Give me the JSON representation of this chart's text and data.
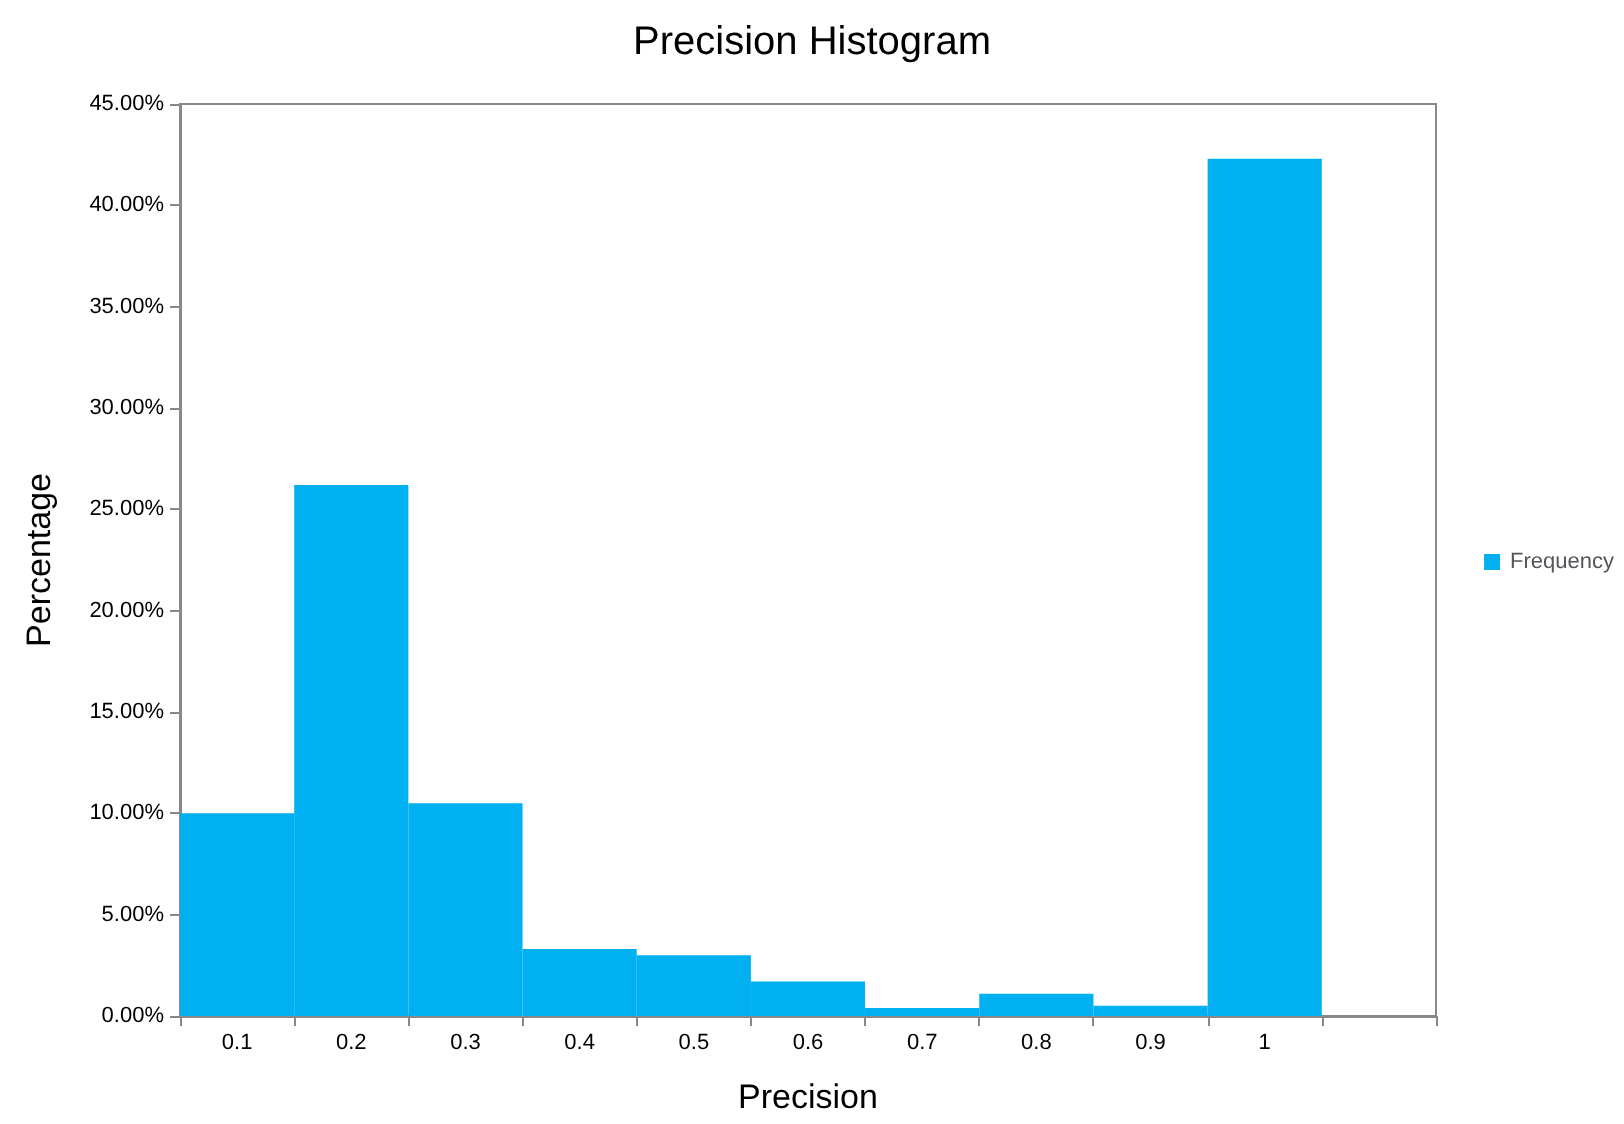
{
  "chart_data": {
    "type": "bar",
    "title": "Precision Histogram",
    "xlabel": "Precision",
    "ylabel": "Percentage",
    "categories": [
      "0.1",
      "0.2",
      "0.3",
      "0.4",
      "0.5",
      "0.6",
      "0.7",
      "0.8",
      "0.9",
      "1",
      null
    ],
    "series": [
      {
        "name": "Frequency",
        "color": "#00b0f0",
        "values": [
          10.0,
          26.2,
          10.5,
          3.3,
          3.0,
          1.7,
          0.4,
          1.1,
          0.5,
          42.3,
          null
        ]
      }
    ],
    "ylim": [
      0,
      45
    ],
    "yticks": [
      {
        "value": 0,
        "label": "0.00%"
      },
      {
        "value": 5,
        "label": "5.00%"
      },
      {
        "value": 10,
        "label": "10.00%"
      },
      {
        "value": 15,
        "label": "15.00%"
      },
      {
        "value": 20,
        "label": "20.00%"
      },
      {
        "value": 25,
        "label": "25.00%"
      },
      {
        "value": 30,
        "label": "30.00%"
      },
      {
        "value": 35,
        "label": "35.00%"
      },
      {
        "value": 40,
        "label": "40.00%"
      },
      {
        "value": 45,
        "label": "45.00%"
      }
    ],
    "grid": false,
    "legend": "right"
  }
}
